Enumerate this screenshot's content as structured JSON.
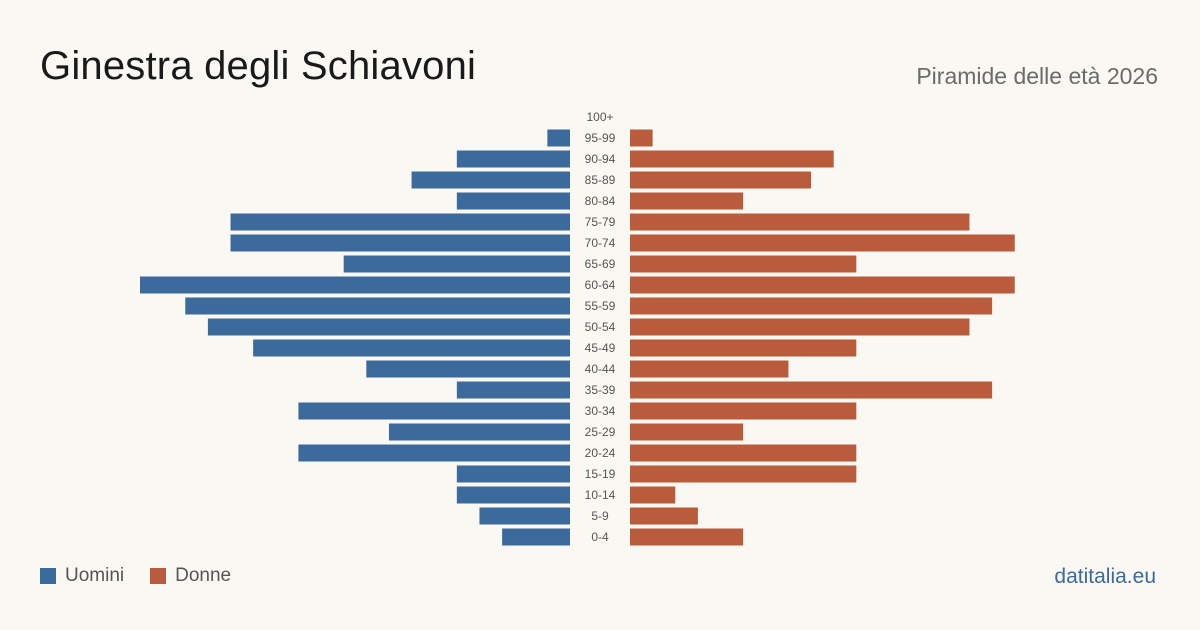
{
  "header": {
    "title": "Ginestra degli Schiavoni",
    "subtitle": "Piramide delle età 2026"
  },
  "legend": {
    "men_label": "Uomini",
    "women_label": "Donne"
  },
  "footer": {
    "brand": "datitalia.eu"
  },
  "colors": {
    "men": "#3d6a9c",
    "women": "#b85c3c",
    "tick_text": "#555555"
  },
  "chart_data": {
    "type": "bar",
    "orientation": "horizontal-population-pyramid",
    "categories": [
      "100+",
      "95-99",
      "90-94",
      "85-89",
      "80-84",
      "75-79",
      "70-74",
      "65-69",
      "60-64",
      "55-59",
      "50-54",
      "45-49",
      "40-44",
      "35-39",
      "30-34",
      "25-29",
      "20-24",
      "15-19",
      "10-14",
      "5-9",
      "0-4"
    ],
    "series": [
      {
        "name": "Uomini",
        "values": [
          0,
          1,
          5,
          7,
          5,
          15,
          15,
          10,
          19,
          17,
          16,
          14,
          9,
          5,
          12,
          8,
          12,
          5,
          5,
          4,
          3
        ]
      },
      {
        "name": "Donne",
        "values": [
          0,
          1,
          9,
          8,
          5,
          15,
          17,
          10,
          17,
          16,
          15,
          10,
          7,
          16,
          10,
          5,
          10,
          10,
          2,
          3,
          5
        ]
      }
    ],
    "xlim": [
      0,
      19
    ],
    "grid": false,
    "legend_position": "bottom-left"
  }
}
